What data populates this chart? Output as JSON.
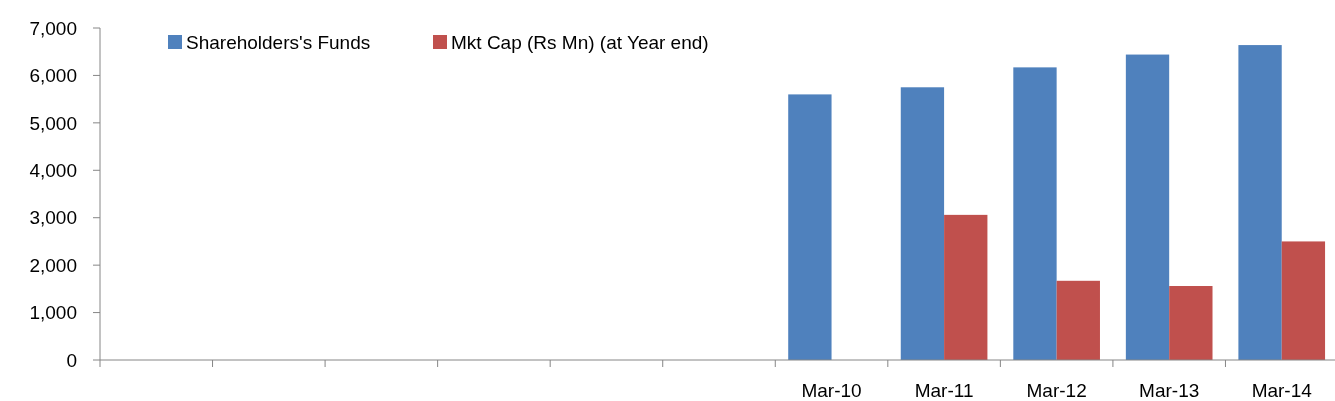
{
  "chart_data": {
    "type": "bar",
    "categories": [
      null,
      null,
      null,
      null,
      null,
      null,
      "Mar-10",
      "Mar-11",
      "Mar-12",
      "Mar-13",
      "Mar-14"
    ],
    "series": [
      {
        "name": "Shareholders's Funds",
        "color": "#4f81bd",
        "values": [
          null,
          null,
          null,
          null,
          null,
          null,
          5600,
          5750,
          6170,
          6440,
          6640
        ]
      },
      {
        "name": "Mkt Cap (Rs Mn) (at Year end)",
        "color": "#c0504d",
        "values": [
          null,
          null,
          null,
          null,
          null,
          null,
          null,
          3060,
          1670,
          1560,
          2500
        ]
      }
    ],
    "ylim": [
      0,
      7000
    ],
    "yticks": [
      {
        "value": 0,
        "label": "0"
      },
      {
        "value": 1000,
        "label": "1,000"
      },
      {
        "value": 2000,
        "label": "2,000"
      },
      {
        "value": 3000,
        "label": "3,000"
      },
      {
        "value": 4000,
        "label": "4,000"
      },
      {
        "value": 5000,
        "label": "5,000"
      },
      {
        "value": 6000,
        "label": "6,000"
      },
      {
        "value": 7000,
        "label": "7,000"
      }
    ],
    "grid": false,
    "legend": "top left"
  }
}
